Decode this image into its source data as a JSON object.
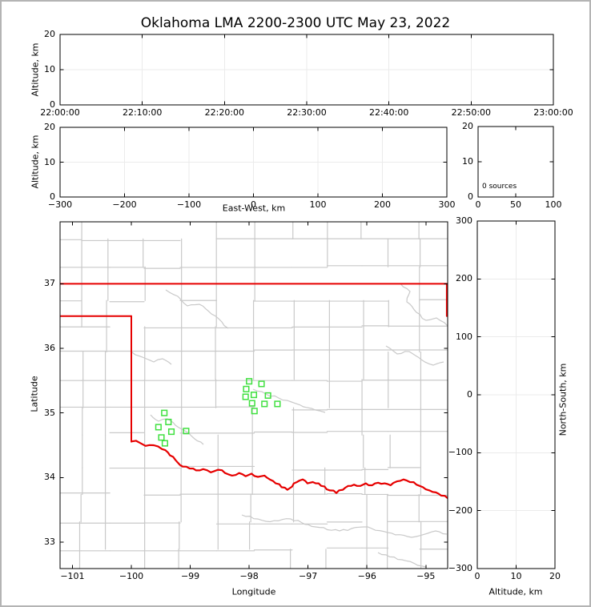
{
  "title": "Oklahoma LMA 2200-2300 UTC May 23, 2022",
  "colors": {
    "state_border": "#e60000",
    "county_lines": "#c9c9c9",
    "stations": "#3fe03f",
    "grid": "#ebebeb",
    "axes": "#000000",
    "background": "#ffffff",
    "frame": "#b4b4b4"
  },
  "panels": {
    "time_height": {
      "ylabel": "Altitude, km",
      "x_tick_labels": [
        "22:00:00",
        "22:10:00",
        "22:20:00",
        "22:30:00",
        "22:40:00",
        "22:50:00",
        "23:00:00"
      ],
      "y_tick_labels": [
        "0",
        "10",
        "20"
      ]
    },
    "ew_height": {
      "xlabel": "East-West, km",
      "ylabel": "Altitude, km",
      "x_tick_labels": [
        "−300",
        "−200",
        "−100",
        "0",
        "100",
        "200",
        "300"
      ],
      "y_tick_labels": [
        "0",
        "10",
        "20"
      ]
    },
    "histogram": {
      "annotation": "0 sources",
      "x_tick_labels": [
        "0",
        "50",
        "100"
      ],
      "y_tick_labels": [
        "0",
        "10",
        "20"
      ]
    },
    "map": {
      "xlabel": "Longitude",
      "ylabel": "Latitude",
      "x_tick_labels": [
        "−101",
        "−100",
        "−99",
        "−98",
        "−97",
        "−96",
        "−95"
      ],
      "y_tick_labels": [
        "33",
        "34",
        "35",
        "36",
        "37"
      ]
    },
    "ns_height": {
      "xlabel": "Altitude, km",
      "ylabel_right": "North-South, km",
      "x_tick_labels": [
        "0",
        "10",
        "20"
      ],
      "y_tick_labels": [
        "−300",
        "−200",
        "−100",
        "0",
        "100",
        "200",
        "300"
      ]
    }
  },
  "chart_data": [
    {
      "id": "time_height",
      "type": "scatter",
      "ylabel": "Altitude, km",
      "xlim": [
        0,
        3600
      ],
      "xticks": [
        0,
        600,
        1200,
        1800,
        2400,
        3000,
        3600
      ],
      "xtick_labels": [
        "22:00:00",
        "22:10:00",
        "22:20:00",
        "22:30:00",
        "22:40:00",
        "22:50:00",
        "23:00:00"
      ],
      "ylim": [
        0,
        20
      ],
      "yticks": [
        0,
        10,
        20
      ],
      "grid": true,
      "series": []
    },
    {
      "id": "ew_height",
      "type": "scatter",
      "xlabel": "East-West, km",
      "ylabel": "Altitude, km",
      "xlim": [
        -300,
        300
      ],
      "xticks": [
        -300,
        -200,
        -100,
        0,
        100,
        200,
        300
      ],
      "ylim": [
        0,
        20
      ],
      "yticks": [
        0,
        10,
        20
      ],
      "grid": true,
      "series": []
    },
    {
      "id": "alt_histogram",
      "type": "line",
      "annotation": "0 sources",
      "xlim": [
        0,
        100
      ],
      "xticks": [
        0,
        50,
        100
      ],
      "ylim": [
        0,
        20
      ],
      "yticks": [
        0,
        10,
        20
      ],
      "grid": false,
      "series": []
    },
    {
      "id": "plan_map",
      "type": "scatter",
      "xlabel": "Longitude",
      "ylabel": "Latitude",
      "xlim": [
        -101.21,
        -94.63
      ],
      "xticks": [
        -101,
        -100,
        -99,
        -98,
        -97,
        -96,
        -95
      ],
      "ylim": [
        32.59,
        37.96
      ],
      "yticks": [
        33,
        34,
        35,
        36,
        37
      ],
      "grid": false,
      "stations_lon_lat": [
        [
          -98.0,
          35.49
        ],
        [
          -97.79,
          35.45
        ],
        [
          -98.05,
          35.37
        ],
        [
          -97.92,
          35.28
        ],
        [
          -98.06,
          35.25
        ],
        [
          -97.68,
          35.27
        ],
        [
          -97.95,
          35.15
        ],
        [
          -97.74,
          35.14
        ],
        [
          -97.52,
          35.14
        ],
        [
          -97.91,
          35.03
        ],
        [
          -99.44,
          35.0
        ],
        [
          -99.37,
          34.86
        ],
        [
          -99.54,
          34.78
        ],
        [
          -99.32,
          34.71
        ],
        [
          -99.07,
          34.72
        ],
        [
          -99.49,
          34.62
        ],
        [
          -99.43,
          34.53
        ]
      ],
      "state_border": {
        "north": [
          [
            -101.21,
            37.0
          ],
          [
            -94.63,
            37.0
          ]
        ],
        "panhandle_south": [
          [
            -101.21,
            36.5
          ],
          [
            -100.0,
            36.5
          ]
        ],
        "west": [
          [
            -100.0,
            36.5
          ],
          [
            -100.0,
            34.555
          ]
        ],
        "east": [
          [
            -94.645,
            37.0
          ],
          [
            -94.645,
            36.5
          ]
        ],
        "red_river": [
          [
            -99.99,
            34.56
          ],
          [
            -99.86,
            34.54
          ],
          [
            -99.76,
            34.49
          ],
          [
            -99.62,
            34.5
          ],
          [
            -99.48,
            34.44
          ],
          [
            -99.38,
            34.39
          ],
          [
            -99.29,
            34.32
          ],
          [
            -99.21,
            34.23
          ],
          [
            -99.13,
            34.17
          ],
          [
            -99.01,
            34.14
          ],
          [
            -98.9,
            34.11
          ],
          [
            -98.78,
            34.13
          ],
          [
            -98.65,
            34.08
          ],
          [
            -98.53,
            34.12
          ],
          [
            -98.41,
            34.07
          ],
          [
            -98.29,
            34.03
          ],
          [
            -98.17,
            34.07
          ],
          [
            -98.06,
            34.02
          ],
          [
            -97.96,
            34.06
          ],
          [
            -97.85,
            34.01
          ],
          [
            -97.74,
            34.03
          ],
          [
            -97.65,
            33.97
          ],
          [
            -97.55,
            33.91
          ],
          [
            -97.45,
            33.85
          ],
          [
            -97.35,
            33.81
          ],
          [
            -97.27,
            33.86
          ],
          [
            -97.19,
            33.93
          ],
          [
            -97.09,
            33.97
          ],
          [
            -97.01,
            33.91
          ],
          [
            -96.92,
            33.93
          ],
          [
            -96.82,
            33.91
          ],
          [
            -96.72,
            33.86
          ],
          [
            -96.63,
            33.8
          ],
          [
            -96.52,
            33.76
          ],
          [
            -96.41,
            33.81
          ],
          [
            -96.32,
            33.87
          ],
          [
            -96.22,
            33.89
          ],
          [
            -96.11,
            33.87
          ],
          [
            -96.02,
            33.91
          ],
          [
            -95.91,
            33.88
          ],
          [
            -95.81,
            33.92
          ],
          [
            -95.7,
            33.91
          ],
          [
            -95.6,
            33.88
          ],
          [
            -95.49,
            33.94
          ],
          [
            -95.38,
            33.97
          ],
          [
            -95.27,
            33.93
          ],
          [
            -95.16,
            33.89
          ],
          [
            -95.05,
            33.85
          ],
          [
            -94.94,
            33.8
          ],
          [
            -94.83,
            33.77
          ],
          [
            -94.74,
            33.72
          ],
          [
            -94.63,
            33.68
          ]
        ]
      }
    },
    {
      "id": "ns_height",
      "type": "scatter",
      "xlabel": "Altitude, km",
      "ylabel": "North-South, km",
      "xlim": [
        0,
        20
      ],
      "xticks": [
        0,
        10,
        20
      ],
      "ylim": [
        -300,
        300
      ],
      "yticks": [
        -300,
        -200,
        -100,
        0,
        100,
        200,
        300
      ],
      "grid": true,
      "series": []
    }
  ]
}
